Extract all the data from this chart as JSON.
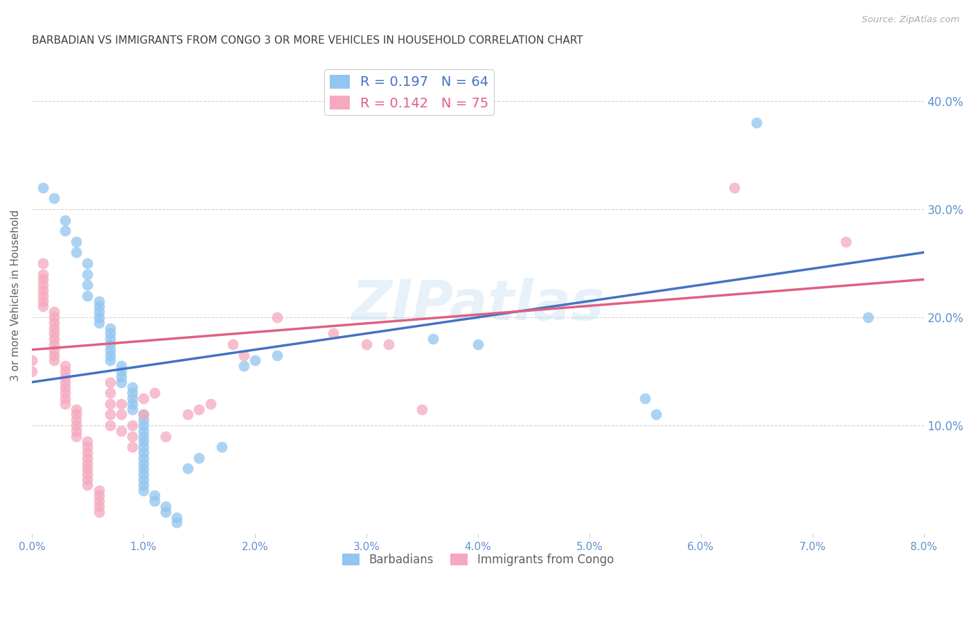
{
  "title": "BARBADIAN VS IMMIGRANTS FROM CONGO 3 OR MORE VEHICLES IN HOUSEHOLD CORRELATION CHART",
  "source": "Source: ZipAtlas.com",
  "ylabel": "3 or more Vehicles in Household",
  "xlim": [
    0.0,
    0.08
  ],
  "ylim": [
    0.0,
    0.44
  ],
  "x_ticks": [
    0.0,
    0.01,
    0.02,
    0.03,
    0.04,
    0.05,
    0.06,
    0.07,
    0.08
  ],
  "x_tick_labels": [
    "0.0%",
    "1.0%",
    "2.0%",
    "3.0%",
    "4.0%",
    "5.0%",
    "6.0%",
    "7.0%",
    "8.0%"
  ],
  "y_ticks": [
    0.1,
    0.2,
    0.3,
    0.4
  ],
  "y_tick_labels": [
    "10.0%",
    "20.0%",
    "30.0%",
    "40.0%"
  ],
  "blue_color": "#92C5F0",
  "pink_color": "#F5A8BE",
  "blue_line_color": "#4472C4",
  "pink_line_color": "#E06080",
  "legend_r_blue": "R = 0.197",
  "legend_n_blue": "N = 64",
  "legend_r_pink": "R = 0.142",
  "legend_n_pink": "N = 75",
  "label_blue": "Barbadians",
  "label_pink": "Immigrants from Congo",
  "watermark": "ZIPatlas",
  "background_color": "#ffffff",
  "title_color": "#404040",
  "axis_label_color": "#606060",
  "tick_color": "#6090D0",
  "blue_scatter": [
    [
      0.001,
      0.32
    ],
    [
      0.002,
      0.31
    ],
    [
      0.003,
      0.29
    ],
    [
      0.003,
      0.28
    ],
    [
      0.004,
      0.27
    ],
    [
      0.004,
      0.26
    ],
    [
      0.005,
      0.25
    ],
    [
      0.005,
      0.24
    ],
    [
      0.005,
      0.23
    ],
    [
      0.005,
      0.22
    ],
    [
      0.006,
      0.215
    ],
    [
      0.006,
      0.21
    ],
    [
      0.006,
      0.205
    ],
    [
      0.006,
      0.2
    ],
    [
      0.006,
      0.195
    ],
    [
      0.007,
      0.19
    ],
    [
      0.007,
      0.185
    ],
    [
      0.007,
      0.18
    ],
    [
      0.007,
      0.175
    ],
    [
      0.007,
      0.17
    ],
    [
      0.007,
      0.165
    ],
    [
      0.007,
      0.16
    ],
    [
      0.008,
      0.155
    ],
    [
      0.008,
      0.15
    ],
    [
      0.008,
      0.145
    ],
    [
      0.008,
      0.14
    ],
    [
      0.009,
      0.135
    ],
    [
      0.009,
      0.13
    ],
    [
      0.009,
      0.125
    ],
    [
      0.009,
      0.12
    ],
    [
      0.009,
      0.115
    ],
    [
      0.01,
      0.11
    ],
    [
      0.01,
      0.105
    ],
    [
      0.01,
      0.1
    ],
    [
      0.01,
      0.095
    ],
    [
      0.01,
      0.09
    ],
    [
      0.01,
      0.085
    ],
    [
      0.01,
      0.08
    ],
    [
      0.01,
      0.075
    ],
    [
      0.01,
      0.07
    ],
    [
      0.01,
      0.065
    ],
    [
      0.01,
      0.06
    ],
    [
      0.01,
      0.055
    ],
    [
      0.01,
      0.05
    ],
    [
      0.01,
      0.045
    ],
    [
      0.01,
      0.04
    ],
    [
      0.011,
      0.035
    ],
    [
      0.011,
      0.03
    ],
    [
      0.012,
      0.025
    ],
    [
      0.012,
      0.02
    ],
    [
      0.013,
      0.015
    ],
    [
      0.013,
      0.01
    ],
    [
      0.014,
      0.06
    ],
    [
      0.015,
      0.07
    ],
    [
      0.017,
      0.08
    ],
    [
      0.019,
      0.155
    ],
    [
      0.02,
      0.16
    ],
    [
      0.022,
      0.165
    ],
    [
      0.036,
      0.18
    ],
    [
      0.04,
      0.175
    ],
    [
      0.055,
      0.125
    ],
    [
      0.056,
      0.11
    ],
    [
      0.065,
      0.38
    ],
    [
      0.075,
      0.2
    ]
  ],
  "pink_scatter": [
    [
      0.0,
      0.15
    ],
    [
      0.0,
      0.16
    ],
    [
      0.001,
      0.25
    ],
    [
      0.001,
      0.24
    ],
    [
      0.001,
      0.235
    ],
    [
      0.001,
      0.23
    ],
    [
      0.001,
      0.225
    ],
    [
      0.001,
      0.22
    ],
    [
      0.001,
      0.215
    ],
    [
      0.001,
      0.21
    ],
    [
      0.002,
      0.205
    ],
    [
      0.002,
      0.2
    ],
    [
      0.002,
      0.195
    ],
    [
      0.002,
      0.19
    ],
    [
      0.002,
      0.185
    ],
    [
      0.002,
      0.18
    ],
    [
      0.002,
      0.175
    ],
    [
      0.002,
      0.17
    ],
    [
      0.002,
      0.165
    ],
    [
      0.002,
      0.16
    ],
    [
      0.003,
      0.155
    ],
    [
      0.003,
      0.15
    ],
    [
      0.003,
      0.145
    ],
    [
      0.003,
      0.14
    ],
    [
      0.003,
      0.135
    ],
    [
      0.003,
      0.13
    ],
    [
      0.003,
      0.125
    ],
    [
      0.003,
      0.12
    ],
    [
      0.004,
      0.115
    ],
    [
      0.004,
      0.11
    ],
    [
      0.004,
      0.105
    ],
    [
      0.004,
      0.1
    ],
    [
      0.004,
      0.095
    ],
    [
      0.004,
      0.09
    ],
    [
      0.005,
      0.085
    ],
    [
      0.005,
      0.08
    ],
    [
      0.005,
      0.075
    ],
    [
      0.005,
      0.07
    ],
    [
      0.005,
      0.065
    ],
    [
      0.005,
      0.06
    ],
    [
      0.005,
      0.055
    ],
    [
      0.005,
      0.05
    ],
    [
      0.005,
      0.045
    ],
    [
      0.006,
      0.04
    ],
    [
      0.006,
      0.035
    ],
    [
      0.006,
      0.03
    ],
    [
      0.006,
      0.025
    ],
    [
      0.006,
      0.02
    ],
    [
      0.007,
      0.1
    ],
    [
      0.007,
      0.11
    ],
    [
      0.007,
      0.12
    ],
    [
      0.007,
      0.13
    ],
    [
      0.007,
      0.14
    ],
    [
      0.008,
      0.095
    ],
    [
      0.008,
      0.11
    ],
    [
      0.008,
      0.12
    ],
    [
      0.009,
      0.08
    ],
    [
      0.009,
      0.09
    ],
    [
      0.009,
      0.1
    ],
    [
      0.01,
      0.11
    ],
    [
      0.01,
      0.125
    ],
    [
      0.011,
      0.13
    ],
    [
      0.012,
      0.09
    ],
    [
      0.014,
      0.11
    ],
    [
      0.015,
      0.115
    ],
    [
      0.016,
      0.12
    ],
    [
      0.018,
      0.175
    ],
    [
      0.019,
      0.165
    ],
    [
      0.022,
      0.2
    ],
    [
      0.027,
      0.185
    ],
    [
      0.03,
      0.175
    ],
    [
      0.032,
      0.175
    ],
    [
      0.035,
      0.115
    ],
    [
      0.063,
      0.32
    ],
    [
      0.073,
      0.27
    ]
  ]
}
